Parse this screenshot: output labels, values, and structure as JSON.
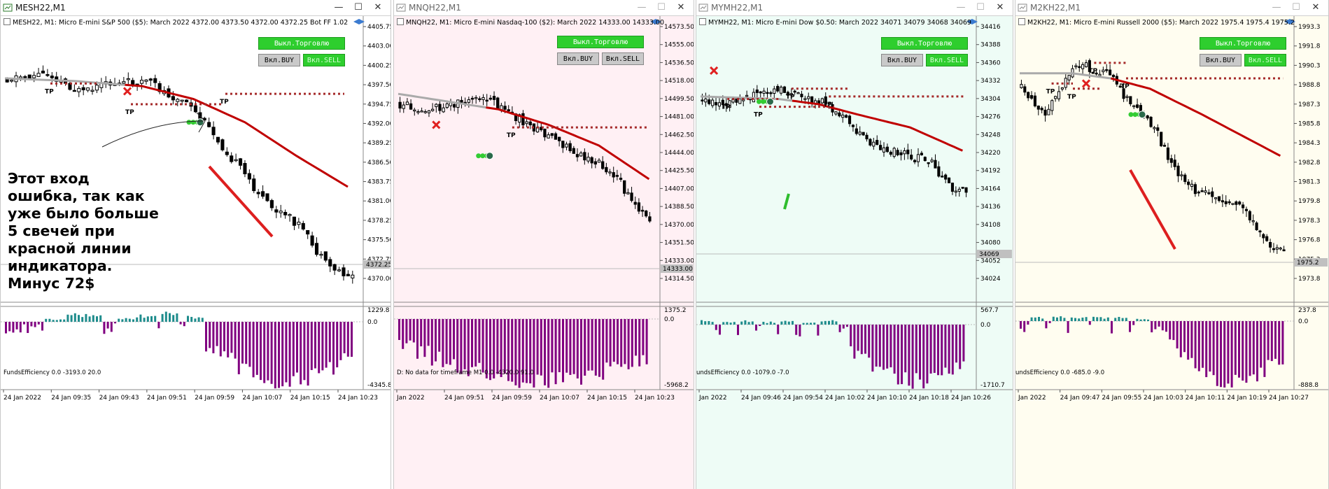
{
  "windows": [
    {
      "title": "MESH22,M1",
      "header": "MESH22, M1:  Micro E-mini S&P 500 ($5): March 2022  4372.00 4373.50 4372.00 4372.25   Bot FF 1.02",
      "buttons": {
        "trade_off": "Выкл.Торговлю",
        "buy_on": "Вкл.BUY",
        "sell_on": "Вкл.SELL"
      },
      "indicator": "FundsEfficiency 0.0 -3193.0 20.0",
      "price_labels": [
        "4405.75",
        "4403.00",
        "4400.25",
        "4397.50",
        "4394.75",
        "4392.00",
        "4389.25",
        "4386.50",
        "4383.75",
        "4381.00",
        "4378.25",
        "4375.50",
        "4372.75",
        "4370.00"
      ],
      "current_price": "4372.25",
      "ind_labels": [
        "1229.8",
        "0.0",
        "-4345.8"
      ],
      "time_labels": [
        "24 Jan 2022",
        "24 Jan 09:35",
        "24 Jan 09:43",
        "24 Jan 09:51",
        "24 Jan 09:59",
        "24 Jan 10:07",
        "24 Jan 10:15",
        "24 Jan 10:23"
      ],
      "annotation": [
        "Этот вход",
        "ошибка, так как",
        "уже было больше",
        "5 свечей при",
        "красной линии",
        "индикатора.",
        "Минус 72$"
      ]
    },
    {
      "title": "MNQH22,M1",
      "header": "MNQH22, M1:  Micro E-mini Nasdaq-100 ($2): March 2022  14333.00 14333.00",
      "buttons": {
        "trade_off": "Выкл.Торговлю",
        "buy_on": "Вкл.BUY",
        "sell_on": "Вкл.SELL"
      },
      "indicator": "D: No data for timeframe M1 0.0 -4320.0 91.0",
      "price_labels": [
        "14573.50",
        "14555.00",
        "14536.50",
        "14518.00",
        "14499.50",
        "14481.00",
        "14462.50",
        "14444.00",
        "14425.50",
        "14407.00",
        "14388.50",
        "14370.00",
        "14351.50",
        "14333.00",
        "14314.50"
      ],
      "current_price": "14333.00",
      "ind_labels": [
        "1375.2",
        "0.0",
        "-5968.2"
      ],
      "time_labels": [
        "Jan 2022",
        "24 Jan 09:51",
        "24 Jan 09:59",
        "24 Jan 10:07",
        "24 Jan 10:15",
        "24 Jan 10:23"
      ]
    },
    {
      "title": "MYMH22,M1",
      "header": "MYMH22, M1:  Micro E-mini Dow $0.50: March 2022  34071 34079 34068 34069",
      "buttons": {
        "trade_off": "Выкл.Торговлю",
        "buy_on": "Вкл.BUY",
        "sell_on": "Вкл.SELL"
      },
      "indicator": "undsEfficiency 0.0 -1079.0 -7.0",
      "price_labels": [
        "34416",
        "34388",
        "34360",
        "34332",
        "34304",
        "34276",
        "34248",
        "34220",
        "34192",
        "34164",
        "34136",
        "34108",
        "34080",
        "34052",
        "34024"
      ],
      "current_price": "34069",
      "ind_labels": [
        "567.7",
        "0.0",
        "-1710.7"
      ],
      "time_labels": [
        "Jan 2022",
        "24 Jan 09:46",
        "24 Jan 09:54",
        "24 Jan 10:02",
        "24 Jan 10:10",
        "24 Jan 10:18",
        "24 Jan 10:26"
      ]
    },
    {
      "title": "M2KH22,M1",
      "header": "M2KH22, M1:  Micro E-mini Russell 2000 ($5): March 2022  1975.4 1975.4 1975.2",
      "buttons": {
        "trade_off": "Выкл.Торговлю",
        "buy_on": "Вкл.BUY",
        "sell_on": "Вкл.SELL"
      },
      "indicator": "undsEfficiency 0.0 -685.0 -9.0",
      "price_labels": [
        "1993.3",
        "1991.8",
        "1990.3",
        "1988.8",
        "1987.3",
        "1985.8",
        "1984.3",
        "1982.8",
        "1981.3",
        "1979.8",
        "1978.3",
        "1976.8",
        "1975.3",
        "1973.8"
      ],
      "current_price": "1975.2",
      "ind_labels": [
        "237.8",
        "0.0",
        "-888.8"
      ],
      "time_labels": [
        "Jan 2022",
        "24 Jan 09:47",
        "24 Jan 09:55",
        "24 Jan 10:03",
        "24 Jan 10:11",
        "24 Jan 10:19",
        "24 Jan 10:27"
      ]
    }
  ],
  "colors": {
    "bg1": "#ffffff",
    "bg2": "#fff0f4",
    "bg3": "#eefcf6",
    "bg4": "#fffdf0",
    "ma": "#c00000",
    "tp": "#a52a2a",
    "hist_pos": "#1e8c8c",
    "hist_neg": "#800080",
    "buttons_green": "#2ece2e"
  },
  "markers": {
    "tp": "TP"
  }
}
